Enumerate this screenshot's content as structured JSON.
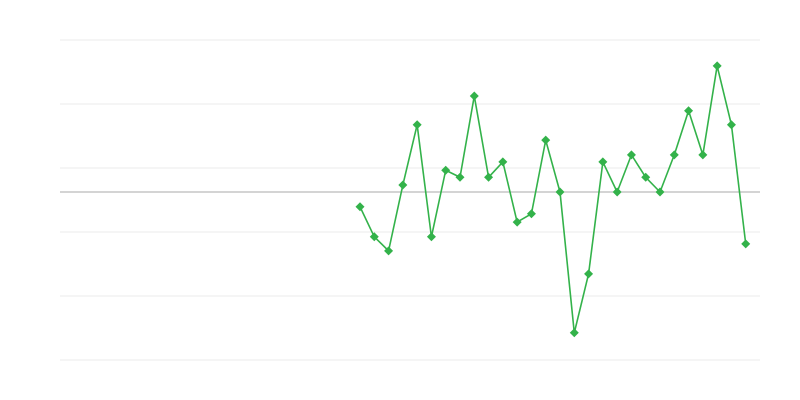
{
  "chart_data": {
    "type": "line",
    "title": "",
    "xlabel": "",
    "ylabel": "",
    "xlim": [
      0,
      49
    ],
    "ylim": [
      -2.625,
      2.375
    ],
    "grid": true,
    "gridlines_y": [
      2.375,
      1.375,
      0.375,
      -0.625,
      -1.625,
      -2.625
    ],
    "baseline": 0,
    "colors": {
      "series": "#33b24a",
      "grid": "#ebebeb",
      "baseline": "#aaaaaa"
    },
    "marker": "diamond",
    "series": [
      {
        "x": [
          21,
          22,
          23,
          24,
          25,
          26,
          27,
          28,
          29,
          30,
          31,
          32,
          33,
          34,
          35,
          36,
          37,
          38,
          39,
          40,
          41,
          42,
          43,
          44,
          45,
          46,
          47,
          48
        ],
        "values": [
          -0.23,
          -0.7,
          -0.92,
          0.11,
          1.05,
          -0.7,
          0.34,
          0.23,
          1.5,
          0.23,
          0.47,
          -0.47,
          -0.34,
          0.81,
          0.0,
          -2.2,
          -1.28,
          0.47,
          0.0,
          0.58,
          0.23,
          0.0,
          0.58,
          1.27,
          0.58,
          1.97,
          1.05,
          -0.81
        ]
      }
    ]
  }
}
